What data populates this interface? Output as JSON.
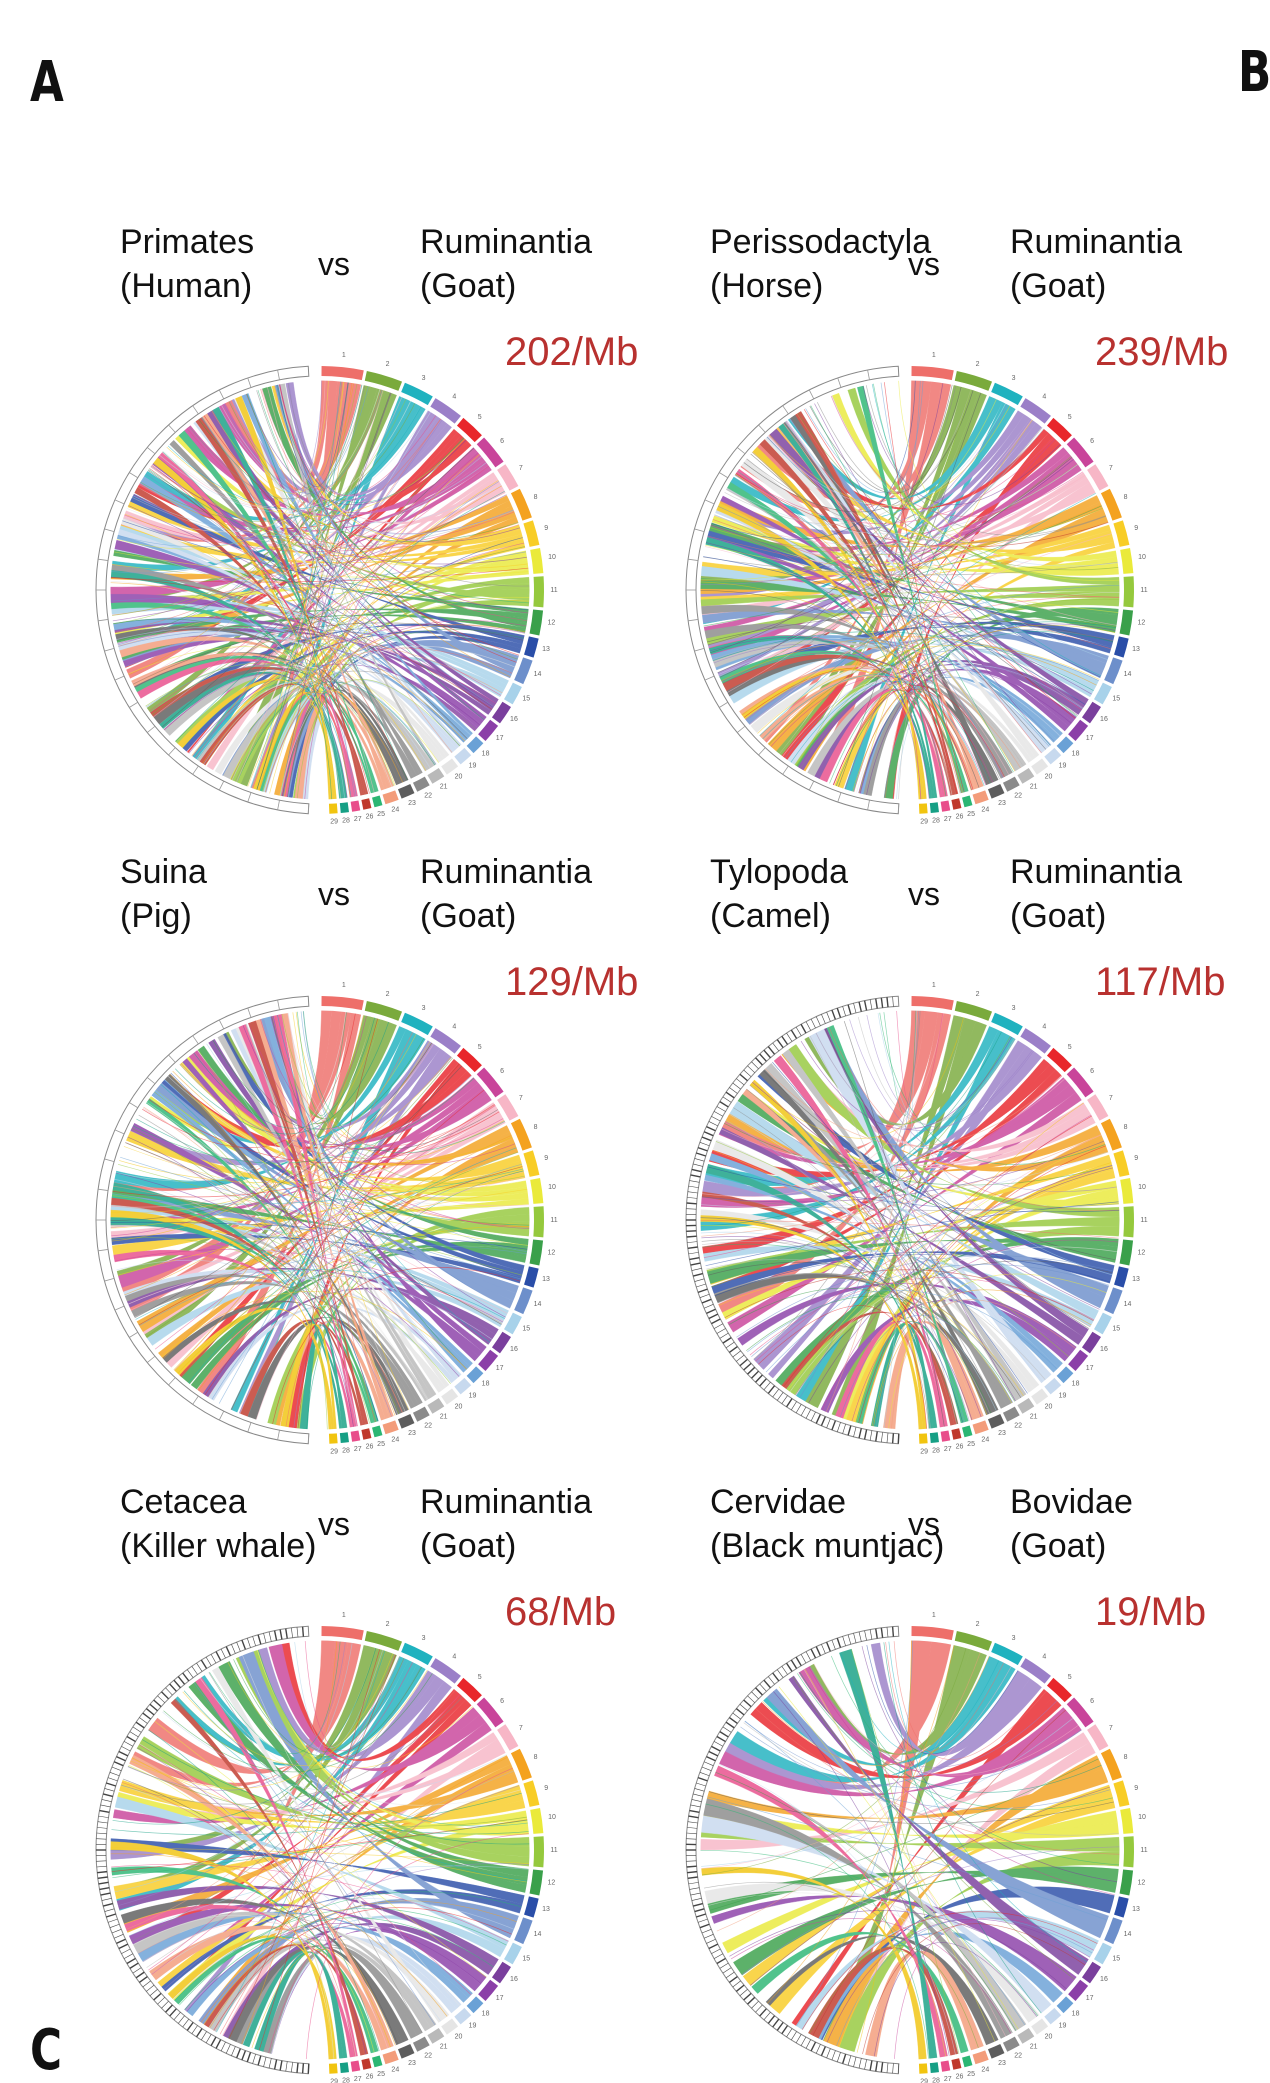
{
  "figure": {
    "panel_a": "A",
    "panel_b": "B",
    "panel_c": "C"
  },
  "comparisons": [
    {
      "left": [
        "Primates",
        "(Human)"
      ],
      "vs": "vs",
      "right": [
        "Ruminantia",
        "(Goat)"
      ],
      "rate": "202/Mb",
      "outer": "sparse"
    },
    {
      "left": [
        "Perissodactyla",
        "(Horse)"
      ],
      "vs": "vs",
      "right": [
        "Ruminantia",
        "(Goat)"
      ],
      "rate": "239/Mb",
      "outer": "sparse"
    },
    {
      "left": [
        "Suina",
        "(Pig)"
      ],
      "vs": "vs",
      "right": [
        "Ruminantia",
        "(Goat)"
      ],
      "rate": "129/Mb",
      "outer": "sparse"
    },
    {
      "left": [
        "Tylopoda",
        "(Camel)"
      ],
      "vs": "vs",
      "right": [
        "Ruminantia",
        "(Goat)"
      ],
      "rate": "117/Mb",
      "outer": "dense"
    },
    {
      "left": [
        "Cetacea",
        "(Killer whale)"
      ],
      "vs": "vs",
      "right": [
        "Ruminantia",
        "(Goat)"
      ],
      "rate": "68/Mb",
      "outer": "dense"
    },
    {
      "left": [
        "Cervidae",
        "(Black muntjac)"
      ],
      "vs": "vs",
      "right": [
        "Bovidae",
        "(Goat)"
      ],
      "rate": "19/Mb",
      "outer": "dense"
    }
  ],
  "goat_chromosomes": [
    "1",
    "2",
    "3",
    "4",
    "5",
    "6",
    "7",
    "8",
    "9",
    "10",
    "11",
    "12",
    "13",
    "14",
    "15",
    "16",
    "17",
    "18",
    "19",
    "20",
    "21",
    "22",
    "23",
    "24",
    "25",
    "26",
    "27",
    "28",
    "29"
  ],
  "palette": [
    "#ee6f6a",
    "#7aaa3c",
    "#1fb2bf",
    "#9b7fc8",
    "#e8262b",
    "#c9449a",
    "#f7b6c6",
    "#f4a21f",
    "#f8cd25",
    "#eaea3a",
    "#95c93d",
    "#3aa04a",
    "#2a4ea8",
    "#6d8fcb",
    "#a8d2ea",
    "#7a3f9d",
    "#8b3fa8",
    "#6aa1d6",
    "#c7d9ee",
    "#e5e5e5",
    "#b9b9b9",
    "#8a8a8a",
    "#5d5d5d",
    "#f39c7a",
    "#2bb673",
    "#c0392b",
    "#e84d8a",
    "#16a085",
    "#f1c40f"
  ]
}
